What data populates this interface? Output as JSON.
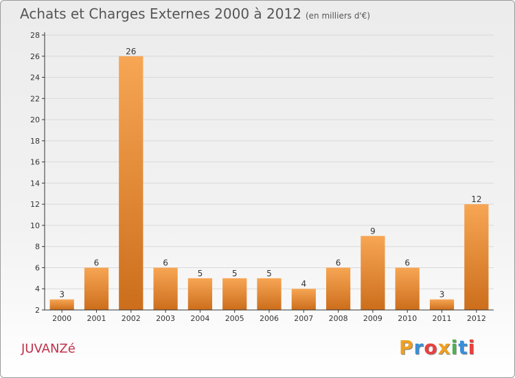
{
  "header": {
    "title": "Achats et Charges Externes 2000 à 2012",
    "subtitle": "(en milliers d'€)"
  },
  "footer": {
    "commune": "JUVANZé",
    "brand": "Proxiti",
    "brand_colors": [
      "#f0a020",
      "#3a8fd8",
      "#e84040",
      "#f0a020",
      "#50b050",
      "#3a8fd8",
      "#e84040"
    ]
  },
  "colors": {
    "bar_top": "#f7a654",
    "bar_bottom": "#cc6e1c",
    "axis": "#333333",
    "grid": "#d8d8d8"
  },
  "chart_data": {
    "type": "bar",
    "categories": [
      "2000",
      "2001",
      "2002",
      "2003",
      "2004",
      "2005",
      "2006",
      "2007",
      "2008",
      "2009",
      "2010",
      "2011",
      "2012"
    ],
    "values": [
      3,
      6,
      26,
      6,
      5,
      5,
      5,
      4,
      6,
      9,
      6,
      3,
      12
    ],
    "data_labels": [
      "3",
      "6",
      "26",
      "6",
      "5",
      "5",
      "5",
      "4",
      "6",
      "9",
      "6",
      "3",
      "12"
    ],
    "yticks": [
      2,
      4,
      6,
      8,
      10,
      12,
      14,
      16,
      18,
      20,
      22,
      24,
      26,
      28
    ],
    "ylim": [
      2,
      28
    ],
    "grid": true
  }
}
